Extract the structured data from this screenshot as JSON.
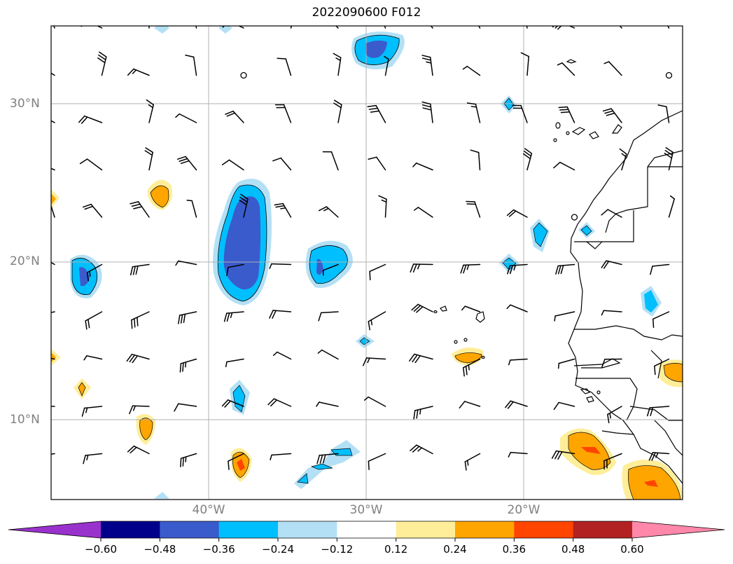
{
  "title": "2022090600 F012",
  "axes": {
    "lat_labels": [
      "30°N",
      "20°N",
      "10°N"
    ],
    "lon_labels": [
      "40°W",
      "30°W",
      "20°W"
    ],
    "gridline_color": "#b0b0b0",
    "label_color": "#808080"
  },
  "colorbar": {
    "tick_labels": [
      "−0.60",
      "−0.48",
      "−0.36",
      "−0.24",
      "−0.12",
      "0.12",
      "0.24",
      "0.36",
      "0.48",
      "0.60"
    ],
    "colors": [
      "#9932cc",
      "#00008b",
      "#3a5bcc",
      "#00bfff",
      "#b3e0f5",
      "#ffffff",
      "#ffee99",
      "#ffa500",
      "#ff4500",
      "#b22222",
      "#ff88aa"
    ]
  }
}
